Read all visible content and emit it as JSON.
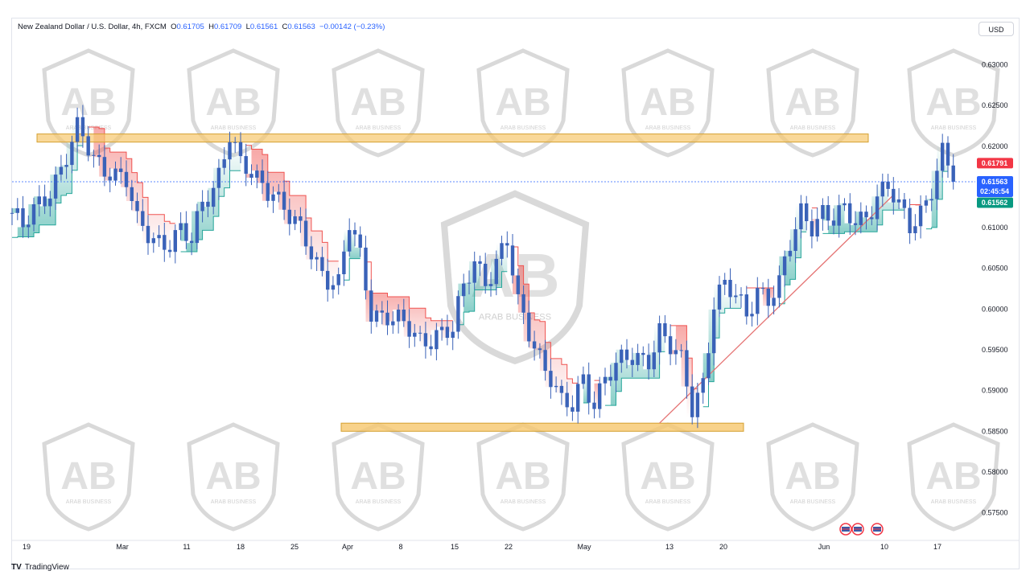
{
  "header": {
    "symbol": "New Zealand Dollar / U.S. Dollar, 4h, FXCM",
    "open_label": "O",
    "open": "0.61705",
    "high_label": "H",
    "high": "0.61709",
    "low_label": "L",
    "low": "0.61561",
    "close_label": "C",
    "close": "0.61563",
    "change": "−0.00142 (−0.23%)"
  },
  "currency_button": "USD",
  "branding": "TradingView",
  "watermark_text": "ARAB BUSINESS",
  "price_tags": {
    "high_tag": "0.61791",
    "last_price": "0.61563",
    "countdown": "02:45:54",
    "bid_tag": "0.61562"
  },
  "colors": {
    "candle": "#3a62b8",
    "zone": "#f6c76d",
    "trendline": "#e57373",
    "support_fill": "#26a69a",
    "resistance_fill": "#ef5350",
    "high_tag": "#f23645",
    "last_tag": "#2962ff",
    "bid_tag": "#089981"
  },
  "chart_data": {
    "type": "candlestick",
    "title": "New Zealand Dollar / U.S. Dollar, 4h, FXCM",
    "ylim": [
      0.572,
      0.6335
    ],
    "y_ticks": [
      "0.63000",
      "0.62500",
      "0.62000",
      "0.61500",
      "0.61000",
      "0.60500",
      "0.60000",
      "0.59500",
      "0.59000",
      "0.58500",
      "0.58000",
      "0.57500"
    ],
    "x_ticks": [
      "19",
      "Mar",
      "11",
      "18",
      "25",
      "Apr",
      "8",
      "15",
      "22",
      "May",
      "13",
      "20",
      "Jun",
      "10",
      "17"
    ],
    "price_path": [
      [
        0,
        0.6118
      ],
      [
        2,
        0.6095
      ],
      [
        6,
        0.614
      ],
      [
        9,
        0.6175
      ],
      [
        12,
        0.6215
      ],
      [
        15,
        0.6185
      ],
      [
        18,
        0.6175
      ],
      [
        21,
        0.6155
      ],
      [
        23,
        0.61
      ],
      [
        26,
        0.609
      ],
      [
        29,
        0.6085
      ],
      [
        31,
        0.6092
      ],
      [
        33,
        0.6078
      ],
      [
        35,
        0.613
      ],
      [
        38,
        0.617
      ],
      [
        40,
        0.6215
      ],
      [
        42,
        0.617
      ],
      [
        45,
        0.616
      ],
      [
        48,
        0.615
      ],
      [
        51,
        0.611
      ],
      [
        54,
        0.608
      ],
      [
        57,
        0.605
      ],
      [
        60,
        0.603
      ],
      [
        62,
        0.61
      ],
      [
        64,
        0.606
      ],
      [
        66,
        0.6
      ],
      [
        69,
        0.5995
      ],
      [
        72,
        0.5975
      ],
      [
        75,
        0.596
      ],
      [
        78,
        0.5975
      ],
      [
        81,
        0.5972
      ],
      [
        83,
        0.602
      ],
      [
        85,
        0.606
      ],
      [
        87,
        0.604
      ],
      [
        89,
        0.606
      ],
      [
        91,
        0.608
      ],
      [
        93,
        0.6
      ],
      [
        96,
        0.596
      ],
      [
        99,
        0.592
      ],
      [
        101,
        0.588
      ],
      [
        103,
        0.5875
      ],
      [
        105,
        0.5915
      ],
      [
        107,
        0.589
      ],
      [
        109,
        0.592
      ],
      [
        111,
        0.5925
      ],
      [
        113,
        0.5935
      ],
      [
        115,
        0.594
      ],
      [
        117,
        0.5945
      ],
      [
        119,
        0.5975
      ],
      [
        121,
        0.595
      ],
      [
        123,
        0.593
      ],
      [
        125,
        0.588
      ],
      [
        127,
        0.5915
      ],
      [
        129,
        0.601
      ],
      [
        131,
        0.6025
      ],
      [
        133,
        0.601
      ],
      [
        135,
        0.5995
      ],
      [
        137,
        0.603
      ],
      [
        139,
        0.6015
      ],
      [
        141,
        0.6025
      ],
      [
        143,
        0.6075
      ],
      [
        145,
        0.612
      ],
      [
        147,
        0.611
      ],
      [
        149,
        0.612
      ],
      [
        151,
        0.6105
      ],
      [
        153,
        0.6115
      ],
      [
        155,
        0.611
      ],
      [
        157,
        0.612
      ],
      [
        159,
        0.614
      ],
      [
        161,
        0.6145
      ],
      [
        163,
        0.612
      ],
      [
        165,
        0.6105
      ],
      [
        167,
        0.6125
      ],
      [
        169,
        0.615
      ],
      [
        171,
        0.6185
      ],
      [
        172,
        0.617
      ],
      [
        173,
        0.6156
      ]
    ],
    "resistance_zone": [
      0.6215,
      0.6205
    ],
    "support_zone": [
      0.586,
      0.585
    ],
    "trendline": {
      "from": [
        119,
        0.586
      ],
      "to": [
        162,
        0.614
      ]
    },
    "last_price": 0.61563,
    "bid": 0.61562,
    "high_marker": 0.61791
  }
}
